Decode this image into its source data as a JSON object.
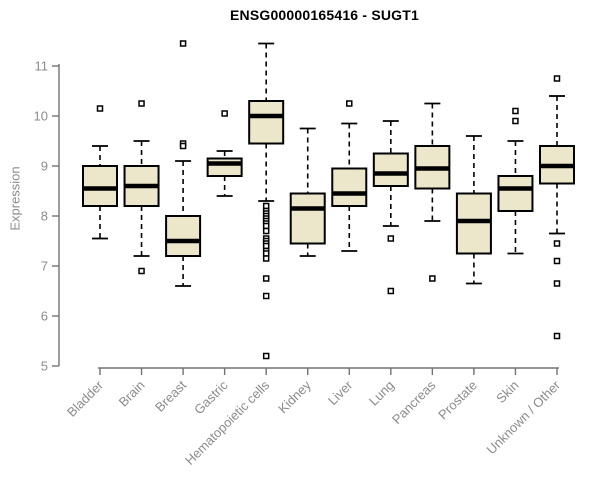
{
  "chart_data": {
    "type": "boxplot",
    "title": "ENSG00000165416 - SUGT1",
    "ylabel": "Expression",
    "xlabel": "",
    "ylim": [
      5,
      11
    ],
    "yticks": [
      5,
      6,
      7,
      8,
      9,
      10,
      11
    ],
    "grid": "off",
    "legend": "none",
    "categories": [
      "Bladder",
      "Brain",
      "Breast",
      "Gastric",
      "Hematopoietic cells",
      "Kidney",
      "Liver",
      "Lung",
      "Pancreas",
      "Prostate",
      "Skin",
      "Unknown / Other"
    ],
    "series": [
      {
        "name": "Bladder",
        "whisker_low": 7.55,
        "q1": 8.2,
        "median": 8.55,
        "q3": 9.0,
        "whisker_high": 9.4,
        "outliers": [
          10.15
        ]
      },
      {
        "name": "Brain",
        "whisker_low": 7.2,
        "q1": 8.2,
        "median": 8.6,
        "q3": 9.0,
        "whisker_high": 9.5,
        "outliers": [
          10.25,
          6.9
        ]
      },
      {
        "name": "Breast",
        "whisker_low": 6.6,
        "q1": 7.2,
        "median": 7.5,
        "q3": 8.0,
        "whisker_high": 9.1,
        "outliers": [
          11.45,
          9.45,
          9.4
        ]
      },
      {
        "name": "Gastric",
        "whisker_low": 8.4,
        "q1": 8.8,
        "median": 9.05,
        "q3": 9.15,
        "whisker_high": 9.3,
        "outliers": [
          10.05
        ]
      },
      {
        "name": "Hematopoietic cells",
        "whisker_low": 8.3,
        "q1": 9.45,
        "median": 10.0,
        "q3": 10.3,
        "whisker_high": 11.45,
        "outliers": [
          8.2,
          8.1,
          8.05,
          8.0,
          7.95,
          7.9,
          7.85,
          7.8,
          7.7,
          7.55,
          7.5,
          7.45,
          7.4,
          7.3,
          7.25,
          7.15,
          6.75,
          6.4,
          5.2
        ]
      },
      {
        "name": "Kidney",
        "whisker_low": 7.2,
        "q1": 7.45,
        "median": 8.15,
        "q3": 8.45,
        "whisker_high": 9.75,
        "outliers": []
      },
      {
        "name": "Liver",
        "whisker_low": 7.3,
        "q1": 8.2,
        "median": 8.45,
        "q3": 8.95,
        "whisker_high": 9.85,
        "outliers": [
          10.25
        ]
      },
      {
        "name": "Lung",
        "whisker_low": 7.8,
        "q1": 8.6,
        "median": 8.85,
        "q3": 9.25,
        "whisker_high": 9.9,
        "outliers": [
          7.55,
          6.5
        ]
      },
      {
        "name": "Pancreas",
        "whisker_low": 7.9,
        "q1": 8.55,
        "median": 8.95,
        "q3": 9.4,
        "whisker_high": 10.25,
        "outliers": [
          6.75
        ]
      },
      {
        "name": "Prostate",
        "whisker_low": 6.65,
        "q1": 7.25,
        "median": 7.9,
        "q3": 8.45,
        "whisker_high": 9.6,
        "outliers": []
      },
      {
        "name": "Skin",
        "whisker_low": 7.25,
        "q1": 8.1,
        "median": 8.55,
        "q3": 8.8,
        "whisker_high": 9.5,
        "outliers": [
          10.1,
          9.9
        ]
      },
      {
        "name": "Unknown / Other",
        "whisker_low": 7.65,
        "q1": 8.65,
        "median": 9.0,
        "q3": 9.4,
        "whisker_high": 10.4,
        "outliers": [
          10.75,
          7.45,
          7.1,
          6.65,
          5.6
        ]
      }
    ],
    "colors": {
      "box_fill": "#ECE7CB",
      "box_stroke": "#000000",
      "median_color": "#000000",
      "whisker_color": "#000000",
      "outlier_stroke": "#000000",
      "axis_color": "#737373",
      "tick_label_color": "#8B8B8B",
      "title_color": "#000000"
    }
  }
}
